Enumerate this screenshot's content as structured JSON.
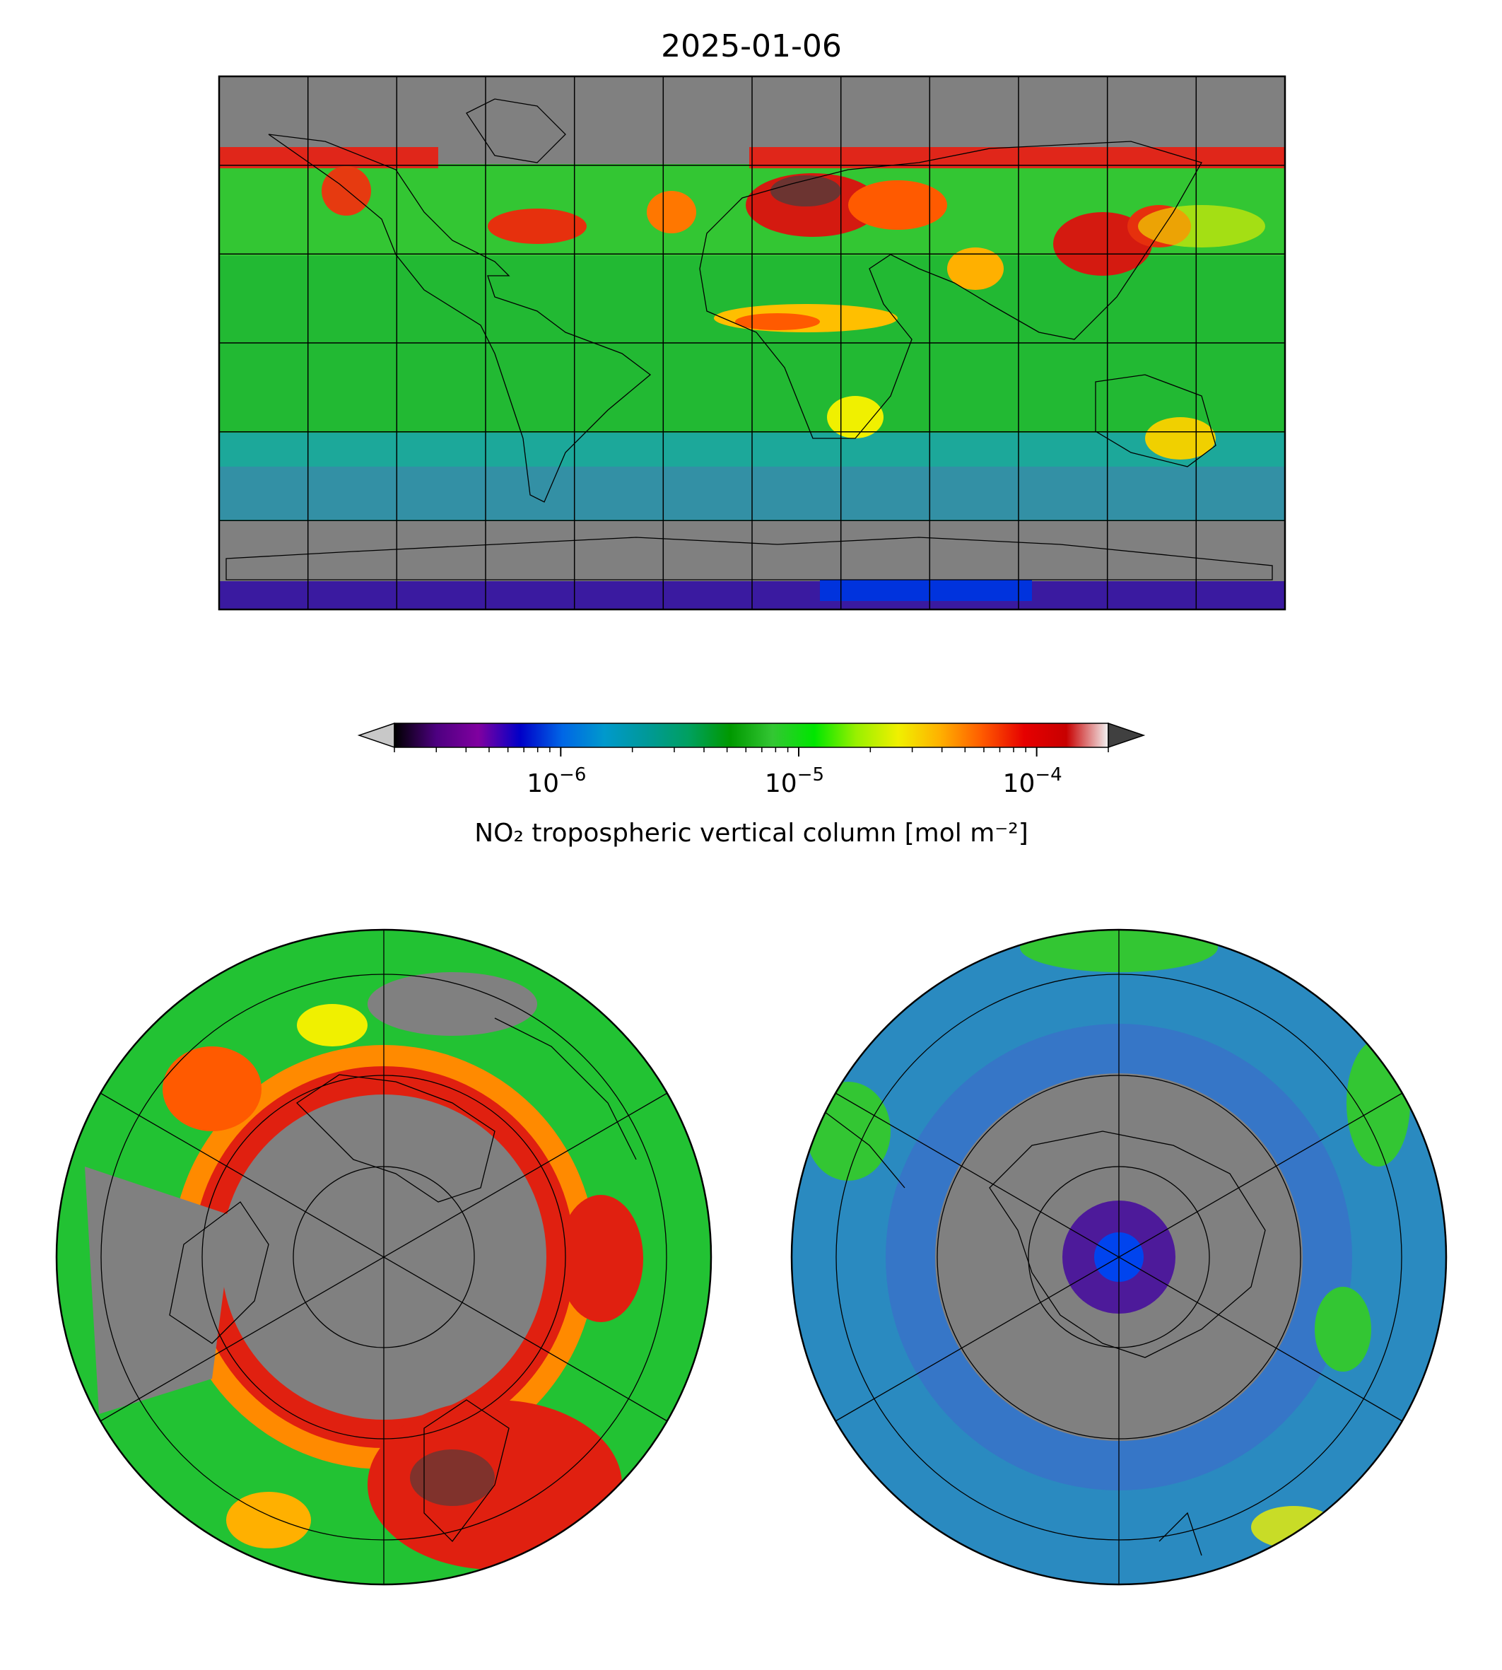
{
  "figure": {
    "title": "2025-01-06"
  },
  "colorbar": {
    "label": "NO₂ tropospheric vertical column [mol m⁻²]",
    "scale": "log",
    "range": [
      2e-07,
      0.0002
    ],
    "extend": "both",
    "under_color": "#c8c8c8",
    "over_color": "#404040",
    "ticks": [
      {
        "base": "10",
        "exp": "−6",
        "value": 1e-06
      },
      {
        "base": "10",
        "exp": "−5",
        "value": 1e-05
      },
      {
        "base": "10",
        "exp": "−4",
        "value": 0.0001
      }
    ],
    "colormap": [
      "#000000",
      "#4d0080",
      "#8000a0",
      "#0000c8",
      "#0066e6",
      "#0099cc",
      "#009999",
      "#00a060",
      "#009900",
      "#33c633",
      "#00e600",
      "#99f000",
      "#f0f000",
      "#ffb000",
      "#ff5a00",
      "#e60000",
      "#c80000",
      "#f2f2f2"
    ]
  },
  "maps": [
    {
      "name": "global",
      "projection": "equirectangular",
      "grid_spacing_deg": 30,
      "missing_color": "#808080"
    },
    {
      "name": "north-polar",
      "projection": "north-polar-stereographic",
      "missing_color": "#808080"
    },
    {
      "name": "south-polar",
      "projection": "south-polar-stereographic",
      "missing_color": "#808080"
    }
  ]
}
